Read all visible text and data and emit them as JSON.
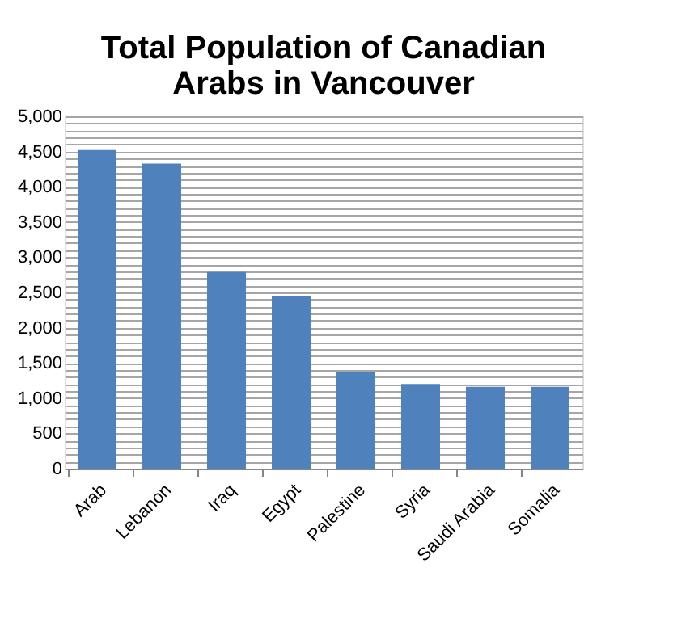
{
  "chart_data": {
    "type": "bar",
    "title": [
      "Total Population of Canadian",
      "Arabs in Vancouver"
    ],
    "categories": [
      "Arab",
      "Lebanon",
      "Iraq",
      "Egypt",
      "Palestine",
      "Syria",
      "Saudi Arabia",
      "Somalia"
    ],
    "values": [
      4520,
      4330,
      2790,
      2450,
      1370,
      1200,
      1160,
      1160
    ],
    "color": "#4f81bd",
    "ylim": [
      0,
      5000
    ],
    "yticks": [
      0,
      {
        "value": 100,
        "label": null
      },
      {
        "value": 200,
        "label": null
      },
      {
        "value": 300,
        "label": null
      },
      {
        "value": 400,
        "label": null
      },
      {
        "value": 500,
        "label": "500"
      },
      {
        "value": 600,
        "label": null
      },
      {
        "value": 700,
        "label": null
      },
      {
        "value": 800,
        "label": null
      },
      {
        "value": 900,
        "label": null
      },
      {
        "value": 1000,
        "label": "1,000"
      },
      {
        "value": 1100,
        "label": null
      },
      {
        "value": 1200,
        "label": null
      },
      {
        "value": 1300,
        "label": null
      },
      {
        "value": 1400,
        "label": null
      },
      {
        "value": 1500,
        "label": "1,500"
      },
      {
        "value": 1600,
        "label": null
      },
      {
        "value": 1700,
        "label": null
      },
      {
        "value": 1800,
        "label": null
      },
      {
        "value": 1900,
        "label": null
      },
      {
        "value": 2000,
        "label": "2,000"
      },
      {
        "value": 2100,
        "label": null
      },
      {
        "value": 2200,
        "label": null
      },
      {
        "value": 2300,
        "label": null
      },
      {
        "value": 2400,
        "label": null
      },
      {
        "value": 2500,
        "label": "2,500"
      },
      {
        "value": 2600,
        "label": null
      },
      {
        "value": 2700,
        "label": null
      },
      {
        "value": 2800,
        "label": null
      },
      {
        "value": 2900,
        "label": null
      },
      {
        "value": 3000,
        "label": "3,000"
      },
      {
        "value": 3100,
        "label": null
      },
      {
        "value": 3200,
        "label": null
      },
      {
        "value": 3300,
        "label": null
      },
      {
        "value": 3400,
        "label": null
      },
      {
        "value": 3500,
        "label": "3,500"
      },
      {
        "value": 3600,
        "label": null
      },
      {
        "value": 3700,
        "label": null
      },
      {
        "value": 3800,
        "label": null
      },
      {
        "value": 3900,
        "label": null
      },
      {
        "value": 4000,
        "label": "4,000"
      },
      {
        "value": 4100,
        "label": null
      },
      {
        "value": 4200,
        "label": null
      },
      {
        "value": 4300,
        "label": null
      },
      {
        "value": 4400,
        "label": null
      },
      {
        "value": 4500,
        "label": "4,500"
      },
      {
        "value": 4600,
        "label": null
      },
      {
        "value": 4700,
        "label": null
      },
      {
        "value": 4800,
        "label": null
      },
      {
        "value": 4900,
        "label": null
      },
      {
        "value": 5000,
        "label": "5,000"
      }
    ],
    "grid": "y"
  }
}
